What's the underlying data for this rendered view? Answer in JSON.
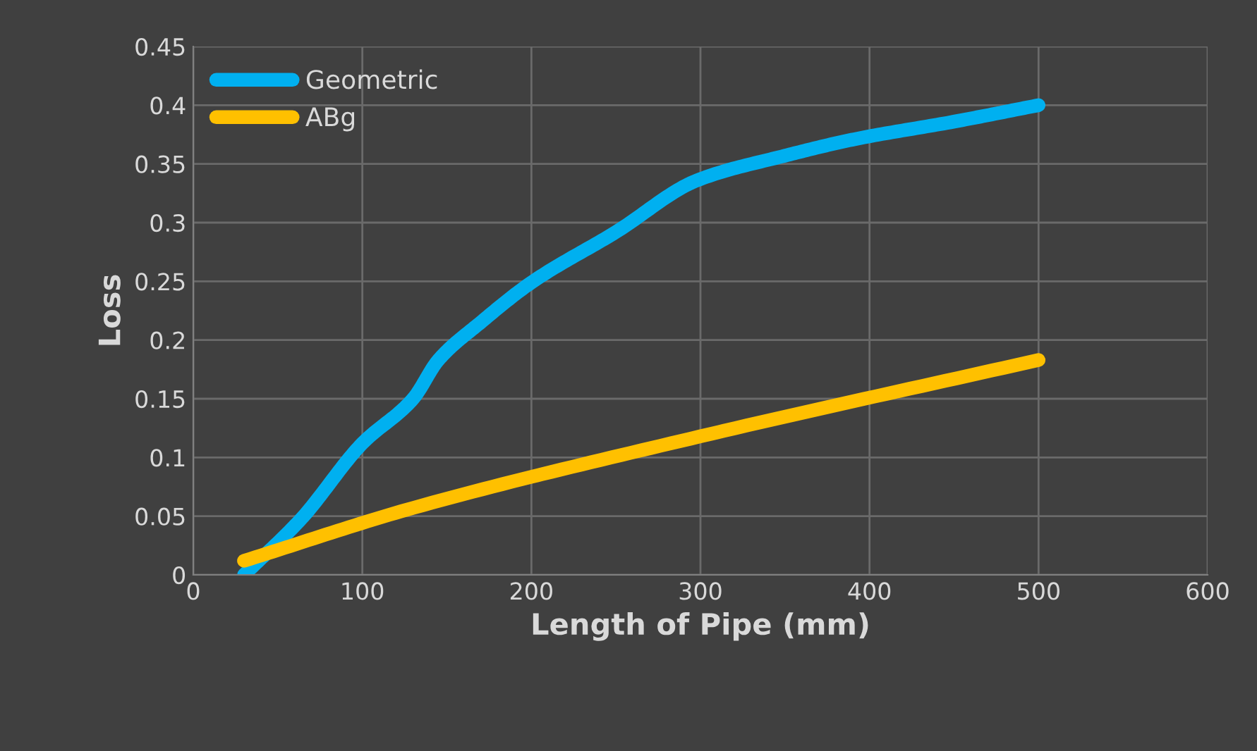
{
  "chart_data": {
    "type": "line",
    "xlabel": "Length of Pipe (mm)",
    "ylabel": "Loss",
    "xlim": [
      0,
      600
    ],
    "xticks": [
      0,
      100,
      200,
      300,
      400,
      500,
      600
    ],
    "ylim": [
      0,
      0.45
    ],
    "yticks": [
      0,
      0.05,
      0.1,
      0.15,
      0.2,
      0.25,
      0.3,
      0.35,
      0.4,
      0.45
    ],
    "grid": true,
    "legend": "top left",
    "marker": "none",
    "line_style": "solid",
    "series": [
      {
        "name": "Geometric",
        "color": "#00b0f0",
        "x": [
          30,
          64,
          100,
          130,
          145,
          170,
          200,
          250,
          298,
          350,
          391,
          450,
          500
        ],
        "values": [
          0,
          0.048,
          0.112,
          0.15,
          0.183,
          0.215,
          0.249,
          0.292,
          0.336,
          0.357,
          0.371,
          0.386,
          0.4
        ]
      },
      {
        "name": "ABg",
        "color": "#ffc000",
        "x": [
          30,
          130,
          300,
          500
        ],
        "values": [
          0.012,
          0.057,
          0.118,
          0.183
        ]
      }
    ]
  }
}
